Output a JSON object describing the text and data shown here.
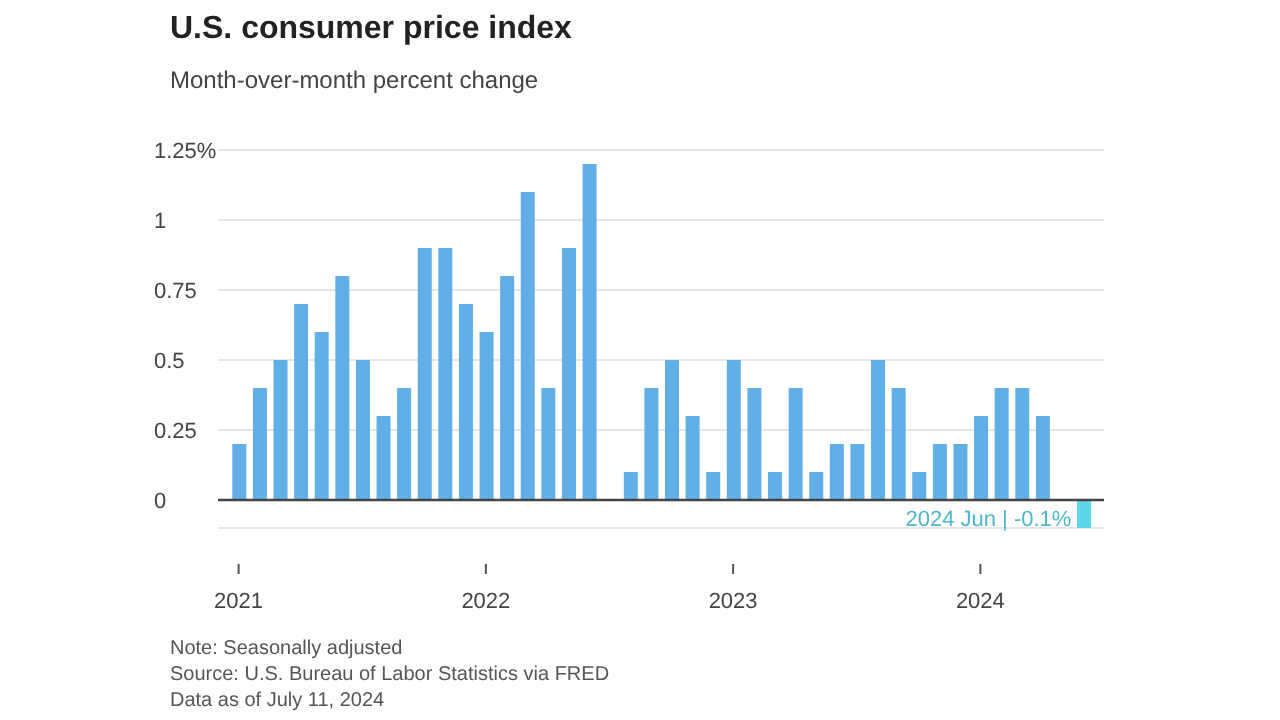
{
  "chart_data": {
    "type": "bar",
    "title": "U.S. consumer price index",
    "subtitle": "Month-over-month percent change",
    "x": [
      "2021-01",
      "2021-02",
      "2021-03",
      "2021-04",
      "2021-05",
      "2021-06",
      "2021-07",
      "2021-08",
      "2021-09",
      "2021-10",
      "2021-11",
      "2021-12",
      "2022-01",
      "2022-02",
      "2022-03",
      "2022-04",
      "2022-05",
      "2022-06",
      "2022-07",
      "2022-08",
      "2022-09",
      "2022-10",
      "2022-11",
      "2022-12",
      "2023-01",
      "2023-02",
      "2023-03",
      "2023-04",
      "2023-05",
      "2023-06",
      "2023-07",
      "2023-08",
      "2023-09",
      "2023-10",
      "2023-11",
      "2023-12",
      "2024-01",
      "2024-02",
      "2024-03",
      "2024-04",
      "2024-05",
      "2024-06"
    ],
    "values": [
      0.2,
      0.4,
      0.5,
      0.7,
      0.6,
      0.8,
      0.5,
      0.3,
      0.4,
      0.9,
      0.9,
      0.7,
      0.6,
      0.8,
      1.1,
      0.4,
      0.9,
      1.2,
      0,
      0.1,
      0.4,
      0.5,
      0.3,
      0.1,
      0.5,
      0.4,
      0.1,
      0.4,
      0.1,
      0.2,
      0.2,
      0.5,
      0.4,
      0.1,
      0.2,
      0.2,
      0.3,
      0.4,
      0.4,
      0.3,
      0,
      -0.1
    ],
    "colors": [
      "#62aee6",
      "#62aee6",
      "#62aee6",
      "#62aee6",
      "#62aee6",
      "#62aee6",
      "#62aee6",
      "#62aee6",
      "#62aee6",
      "#62aee6",
      "#62aee6",
      "#62aee6",
      "#62aee6",
      "#62aee6",
      "#62aee6",
      "#62aee6",
      "#62aee6",
      "#62aee6",
      "#62aee6",
      "#62aee6",
      "#62aee6",
      "#62aee6",
      "#62aee6",
      "#62aee6",
      "#62aee6",
      "#62aee6",
      "#62aee6",
      "#62aee6",
      "#62aee6",
      "#62aee6",
      "#62aee6",
      "#62aee6",
      "#62aee6",
      "#62aee6",
      "#62aee6",
      "#62aee6",
      "#62aee6",
      "#62aee6",
      "#62aee6",
      "#62aee6",
      "#62aee6",
      "#5fd6e8"
    ],
    "xlim": [
      "2020-12",
      "2024-07"
    ],
    "xticks": [
      {
        "value": "2021-01",
        "label": "2021"
      },
      {
        "value": "2022-01",
        "label": "2022"
      },
      {
        "value": "2023-01",
        "label": "2023"
      },
      {
        "value": "2024-01",
        "label": "2024"
      }
    ],
    "ylim": [
      -0.1,
      1.25
    ],
    "yticks": [
      0,
      0.25,
      0.5,
      0.75,
      1,
      {
        "value": 1.25,
        "label": "1.25%"
      }
    ],
    "grid": "y",
    "legend": false,
    "annotations": [
      {
        "text": "2024 Jun | -0.1%",
        "x": "2024-06",
        "y": -0.1
      },
      "Note: Seasonally adjusted",
      "Source: U.S. Bureau of Labor Statistics via FRED",
      "Data as of July 11, 2024"
    ]
  }
}
